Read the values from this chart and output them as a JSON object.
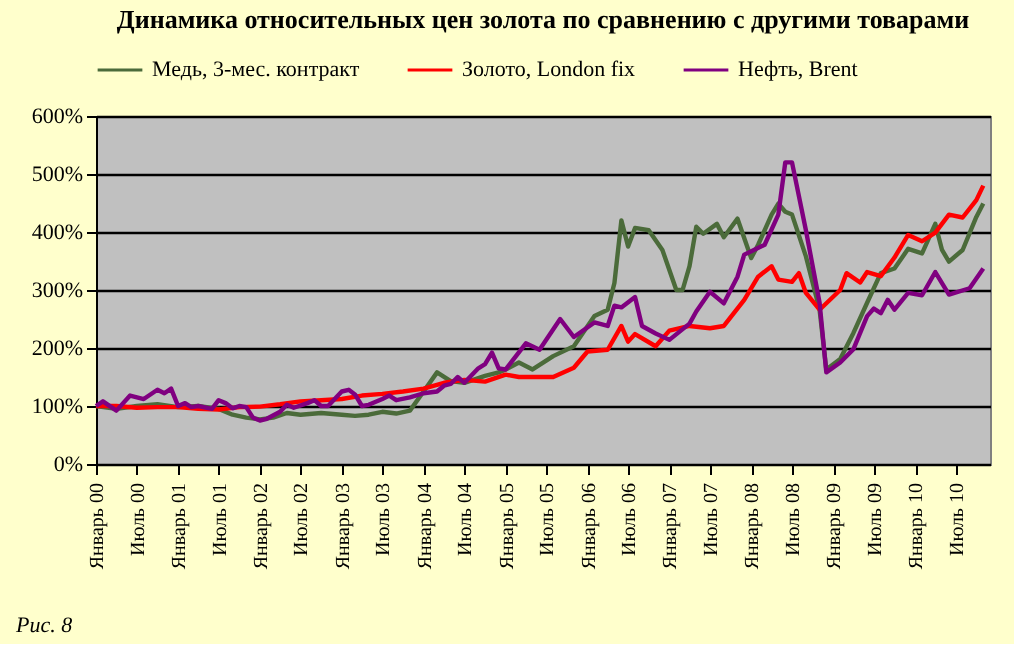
{
  "chart_data": {
    "type": "line",
    "title": "Динамика относительных цен золота по сравнению с другими товарами",
    "annotations": [
      "Рис. 8"
    ],
    "xlim": [
      "2000-01",
      "2010-12"
    ],
    "xticks": [
      {
        "value": "2000-01",
        "label": "Январь 00"
      },
      {
        "value": "2000-07",
        "label": "Июль 00"
      },
      {
        "value": "2001-01",
        "label": "Январь 01"
      },
      {
        "value": "2001-07",
        "label": "Июль 01"
      },
      {
        "value": "2002-01",
        "label": "Январь 02"
      },
      {
        "value": "2002-07",
        "label": "Июль 02"
      },
      {
        "value": "2003-01",
        "label": "Январь 03"
      },
      {
        "value": "2003-07",
        "label": "Июль 03"
      },
      {
        "value": "2004-01",
        "label": "Январь 04"
      },
      {
        "value": "2004-07",
        "label": "Июль 04"
      },
      {
        "value": "2005-01",
        "label": "Январь 05"
      },
      {
        "value": "2005-07",
        "label": "Июль 05"
      },
      {
        "value": "2006-01",
        "label": "Январь 06"
      },
      {
        "value": "2006-07",
        "label": "Июль 06"
      },
      {
        "value": "2007-01",
        "label": "Январь 07"
      },
      {
        "value": "2007-07",
        "label": "Июль 07"
      },
      {
        "value": "2008-01",
        "label": "Январь 08"
      },
      {
        "value": "2008-07",
        "label": "Июль 08"
      },
      {
        "value": "2009-01",
        "label": "Январь 09"
      },
      {
        "value": "2009-07",
        "label": "Июль 09"
      },
      {
        "value": "2010-01",
        "label": "Январь 10"
      },
      {
        "value": "2010-07",
        "label": "Июль 10"
      }
    ],
    "ylim": [
      0,
      600
    ],
    "yticks": [
      {
        "value": 0,
        "label": "0%"
      },
      {
        "value": 100,
        "label": "100%"
      },
      {
        "value": 200,
        "label": "200%"
      },
      {
        "value": 300,
        "label": "300%"
      },
      {
        "value": 400,
        "label": "400%"
      },
      {
        "value": 500,
        "label": "500%"
      },
      {
        "value": 600,
        "label": "600%"
      }
    ],
    "grid": "y",
    "legend": "top",
    "marker": "none",
    "line_style": "solid",
    "series": [
      {
        "name": "Медь, 3-мес. контракт",
        "color": "#4b6b3a",
        "x": [
          "2000-01",
          "2000-04",
          "2000-07",
          "2000-10",
          "2001-01",
          "2001-04",
          "2001-07",
          "2001-09",
          "2001-11",
          "2002-01",
          "2002-03",
          "2002-05",
          "2002-07",
          "2002-10",
          "2003-01",
          "2003-03",
          "2003-05",
          "2003-07",
          "2003-09",
          "2003-11",
          "2004-01",
          "2004-03",
          "2004-05",
          "2004-07",
          "2004-10",
          "2004-12",
          "2005-01",
          "2005-03",
          "2005-05",
          "2005-08",
          "2005-11",
          "2006-02",
          "2006-04",
          "2006-05",
          "2006-06",
          "2006-07",
          "2006-08",
          "2006-10",
          "2006-12",
          "2007-02",
          "2007-03",
          "2007-04",
          "2007-05",
          "2007-06",
          "2007-08",
          "2007-09",
          "2007-11",
          "2008-01",
          "2008-02",
          "2008-04",
          "2008-05",
          "2008-06",
          "2008-07",
          "2008-09",
          "2008-11",
          "2008-12",
          "2009-02",
          "2009-04",
          "2009-06",
          "2009-08",
          "2009-10",
          "2009-12",
          "2010-02",
          "2010-04",
          "2010-05",
          "2010-06",
          "2010-08",
          "2010-10",
          "2010-11"
        ],
        "values": [
          100,
          95,
          100,
          103,
          98,
          100,
          95,
          85,
          80,
          77,
          80,
          88,
          85,
          88,
          85,
          83,
          85,
          90,
          87,
          92,
          125,
          158,
          143,
          140,
          152,
          158,
          163,
          175,
          163,
          186,
          203,
          255,
          266,
          312,
          420,
          375,
          407,
          403,
          369,
          300,
          300,
          341,
          409,
          397,
          414,
          391,
          423,
          355,
          378,
          430,
          449,
          435,
          430,
          358,
          266,
          163,
          181,
          226,
          278,
          329,
          337,
          371,
          363,
          414,
          369,
          349,
          369,
          426,
          449
        ]
      },
      {
        "name": "Золото, London fix",
        "color": "#ff0000",
        "x": [
          "2000-01",
          "2000-04",
          "2000-07",
          "2000-10",
          "2001-01",
          "2001-04",
          "2001-07",
          "2001-10",
          "2002-01",
          "2002-04",
          "2002-07",
          "2002-10",
          "2003-01",
          "2003-04",
          "2003-07",
          "2003-10",
          "2004-01",
          "2004-04",
          "2004-07",
          "2004-10",
          "2005-01",
          "2005-03",
          "2005-08",
          "2005-11",
          "2006-01",
          "2006-04",
          "2006-06",
          "2006-07",
          "2006-08",
          "2006-11",
          "2007-01",
          "2007-04",
          "2007-07",
          "2007-09",
          "2007-12",
          "2008-02",
          "2008-04",
          "2008-05",
          "2008-07",
          "2008-08",
          "2008-09",
          "2008-11",
          "2009-02",
          "2009-03",
          "2009-05",
          "2009-06",
          "2009-08",
          "2009-10",
          "2009-12",
          "2010-02",
          "2010-04",
          "2010-06",
          "2010-08",
          "2010-10",
          "2010-11"
        ],
        "values": [
          100,
          100,
          97,
          98,
          98,
          95,
          94,
          98,
          99,
          103,
          108,
          110,
          112,
          118,
          121,
          125,
          130,
          140,
          145,
          142,
          154,
          150,
          150,
          166,
          194,
          197,
          238,
          211,
          224,
          203,
          230,
          238,
          234,
          238,
          283,
          323,
          341,
          318,
          314,
          329,
          295,
          266,
          300,
          329,
          313,
          331,
          324,
          356,
          395,
          384,
          399,
          430,
          425,
          455,
          480
        ]
      },
      {
        "name": "Нефть, Brent",
        "color": "#800080",
        "x": [
          "2000-01",
          "2000-02",
          "2000-04",
          "2000-06",
          "2000-08",
          "2000-10",
          "2000-11",
          "2000-12",
          "2001-01",
          "2001-02",
          "2001-03",
          "2001-04",
          "2001-06",
          "2001-07",
          "2001-08",
          "2001-09",
          "2001-10",
          "2001-11",
          "2001-12",
          "2002-01",
          "2002-02",
          "2002-04",
          "2002-05",
          "2002-06",
          "2002-08",
          "2002-09",
          "2002-10",
          "2002-11",
          "2003-01",
          "2003-02",
          "2003-03",
          "2003-04",
          "2003-05",
          "2003-07",
          "2003-08",
          "2003-09",
          "2003-11",
          "2004-01",
          "2004-03",
          "2004-04",
          "2004-05",
          "2004-06",
          "2004-07",
          "2004-09",
          "2004-10",
          "2004-11",
          "2004-12",
          "2005-01",
          "2005-04",
          "2005-06",
          "2005-09",
          "2005-11",
          "2006-02",
          "2006-04",
          "2006-05",
          "2006-06",
          "2006-08",
          "2006-09",
          "2006-11",
          "2007-01",
          "2007-04",
          "2007-05",
          "2007-07",
          "2007-09",
          "2007-11",
          "2007-12",
          "2008-03",
          "2008-05",
          "2008-06",
          "2008-07",
          "2008-09",
          "2008-11",
          "2008-12",
          "2009-02",
          "2009-04",
          "2009-06",
          "2009-07",
          "2009-08",
          "2009-09",
          "2009-10",
          "2009-12",
          "2010-02",
          "2010-04",
          "2010-06",
          "2010-09",
          "2010-11"
        ],
        "values": [
          100,
          108,
          92,
          118,
          112,
          128,
          122,
          130,
          100,
          105,
          98,
          100,
          95,
          110,
          105,
          96,
          100,
          98,
          80,
          75,
          78,
          90,
          102,
          97,
          105,
          110,
          100,
          100,
          125,
          128,
          120,
          100,
          102,
          112,
          118,
          110,
          115,
          122,
          125,
          135,
          138,
          150,
          140,
          165,
          172,
          192,
          165,
          163,
          208,
          197,
          250,
          219,
          244,
          238,
          273,
          270,
          288,
          238,
          225,
          214,
          242,
          263,
          297,
          277,
          323,
          361,
          378,
          430,
          520,
          520,
          403,
          278,
          158,
          175,
          198,
          255,
          268,
          260,
          283,
          266,
          295,
          291,
          331,
          292,
          303,
          337
        ]
      }
    ]
  }
}
